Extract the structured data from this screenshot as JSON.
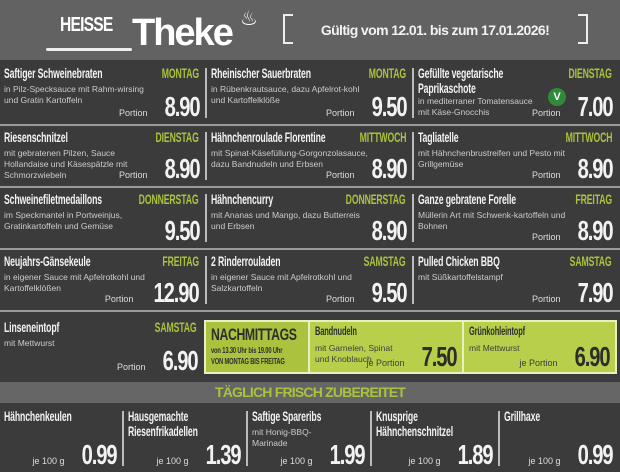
{
  "header": {
    "logo_top": "HEISSE",
    "logo_main": "Theke",
    "validity": "Gültig vom 12.01. bis zum 17.01.2026!"
  },
  "colors": {
    "accent_green": "#a9c33d",
    "box_green": "#b8cf4c",
    "background": "#3b3b3b"
  },
  "dishes": [
    {
      "title": "Saftiger Schweinebraten",
      "day": "MONTAG",
      "desc": "in Pilz-Specksauce mit Rahm-wirsing und Gratin Kartoffeln",
      "unit": "Portion",
      "price": "8.90"
    },
    {
      "title": "Rheinischer Sauerbraten",
      "day": "MONTAG",
      "desc": "in Rübenkrautsauce, dazu Apfelrot-kohl und Kartoffelklöße",
      "unit": "Portion",
      "price": "9.50"
    },
    {
      "title": "Gefüllte vegetarische Paprikaschote",
      "day": "DIENSTAG",
      "desc": "in mediterraner Tomatensauce mit Käse-Gnocchis",
      "unit": "Portion",
      "price": "7.00",
      "badge": "V"
    },
    {
      "title": "Riesenschnitzel",
      "day": "DIENSTAG",
      "desc": "mit gebratenen Pilzen, Sauce Hollandaise und Käsespätzle mit Schmorzwiebeln",
      "unit": "Portion",
      "price": "8.90"
    },
    {
      "title": "Hähnchenroulade Florentine",
      "day": "MITTWOCH",
      "desc": "mit Spinat-Käsefüllung-Gorgonzolasauce, dazu Bandnudeln und Erbsen",
      "unit": "Portion",
      "price": "8.90"
    },
    {
      "title": "Tagliatelle",
      "day": "MITTWOCH",
      "desc": "mit Hähnchenbrustreifen und Pesto mit Grillgemüse",
      "unit": "Portion",
      "price": "8.90"
    },
    {
      "title": "Schweinefiletmedaillons",
      "day": "DONNERSTAG",
      "desc": "im Speckmantel in Portweinjus, Gratinkartoffeln und Gemüse",
      "price": "9.50"
    },
    {
      "title": "Hähnchencurry",
      "day": "DONNERSTAG",
      "desc": "mit Ananas und Mango, dazu Butterreis und Erbsen",
      "price": "8.90"
    },
    {
      "title": "Ganze gebratene Forelle",
      "day": "FREITAG",
      "desc": "Müllerin Art mit Schwenk-kartoffeln und Bohnen",
      "unit": "Portion",
      "price": "8.90"
    },
    {
      "title": "Neujahrs-Gänsekeule",
      "day": "FREITAG",
      "desc": "in eigener Sauce mit Apfelrotkohl und Kartoffelklößen",
      "unit": "Portion",
      "price": "12.90"
    },
    {
      "title": "2 Rinderrouladen",
      "day": "SAMSTAG",
      "desc": "in eigener Sauce mit Apfelrotkohl und Salzkartoffeln",
      "unit": "Portion",
      "price": "9.50"
    },
    {
      "title": "Pulled Chicken BBQ",
      "day": "SAMSTAG",
      "desc": "mit Süßkartoffelstampf",
      "unit": "Portion",
      "price": "7.90"
    },
    {
      "title": "Linseneintopf",
      "day": "SAMSTAG",
      "desc": "mit Mettwurst",
      "unit": "Portion",
      "price": "6.90"
    }
  ],
  "afternoon": {
    "title": "NACHMITTAGS",
    "time": "von 13.30 Uhr bis 19.00 Uhr",
    "days": "VON MONTAG BIS FREITAG",
    "items": [
      {
        "title": "Bandnudeln",
        "desc": "mit Garnelen, Spinat und Knoblauch",
        "unit": "je Portion",
        "price": "7.50"
      },
      {
        "title": "Grünkohleintopf",
        "desc": "mit Mettwurst",
        "unit": "je Portion",
        "price": "6.90"
      }
    ]
  },
  "daily": {
    "banner": "TÄGLICH FRISCH ZUBEREITET",
    "items": [
      {
        "title": "Hähnchenkeulen",
        "unit": "je 100 g",
        "price": "0.99"
      },
      {
        "title": "Hausgemachte Riesenfrikadellen",
        "unit": "je 100 g",
        "price": "1.39"
      },
      {
        "title": "Saftige Spareribs",
        "desc": "mit Honig-BBQ-Marinade",
        "unit": "je 100 g",
        "price": "1.99"
      },
      {
        "title": "Knusprige Hähnchenschnitzel",
        "unit": "je 100 g",
        "price": "1.89"
      },
      {
        "title": "Grillhaxe",
        "unit": "je 100 g",
        "price": "0.99"
      }
    ]
  }
}
